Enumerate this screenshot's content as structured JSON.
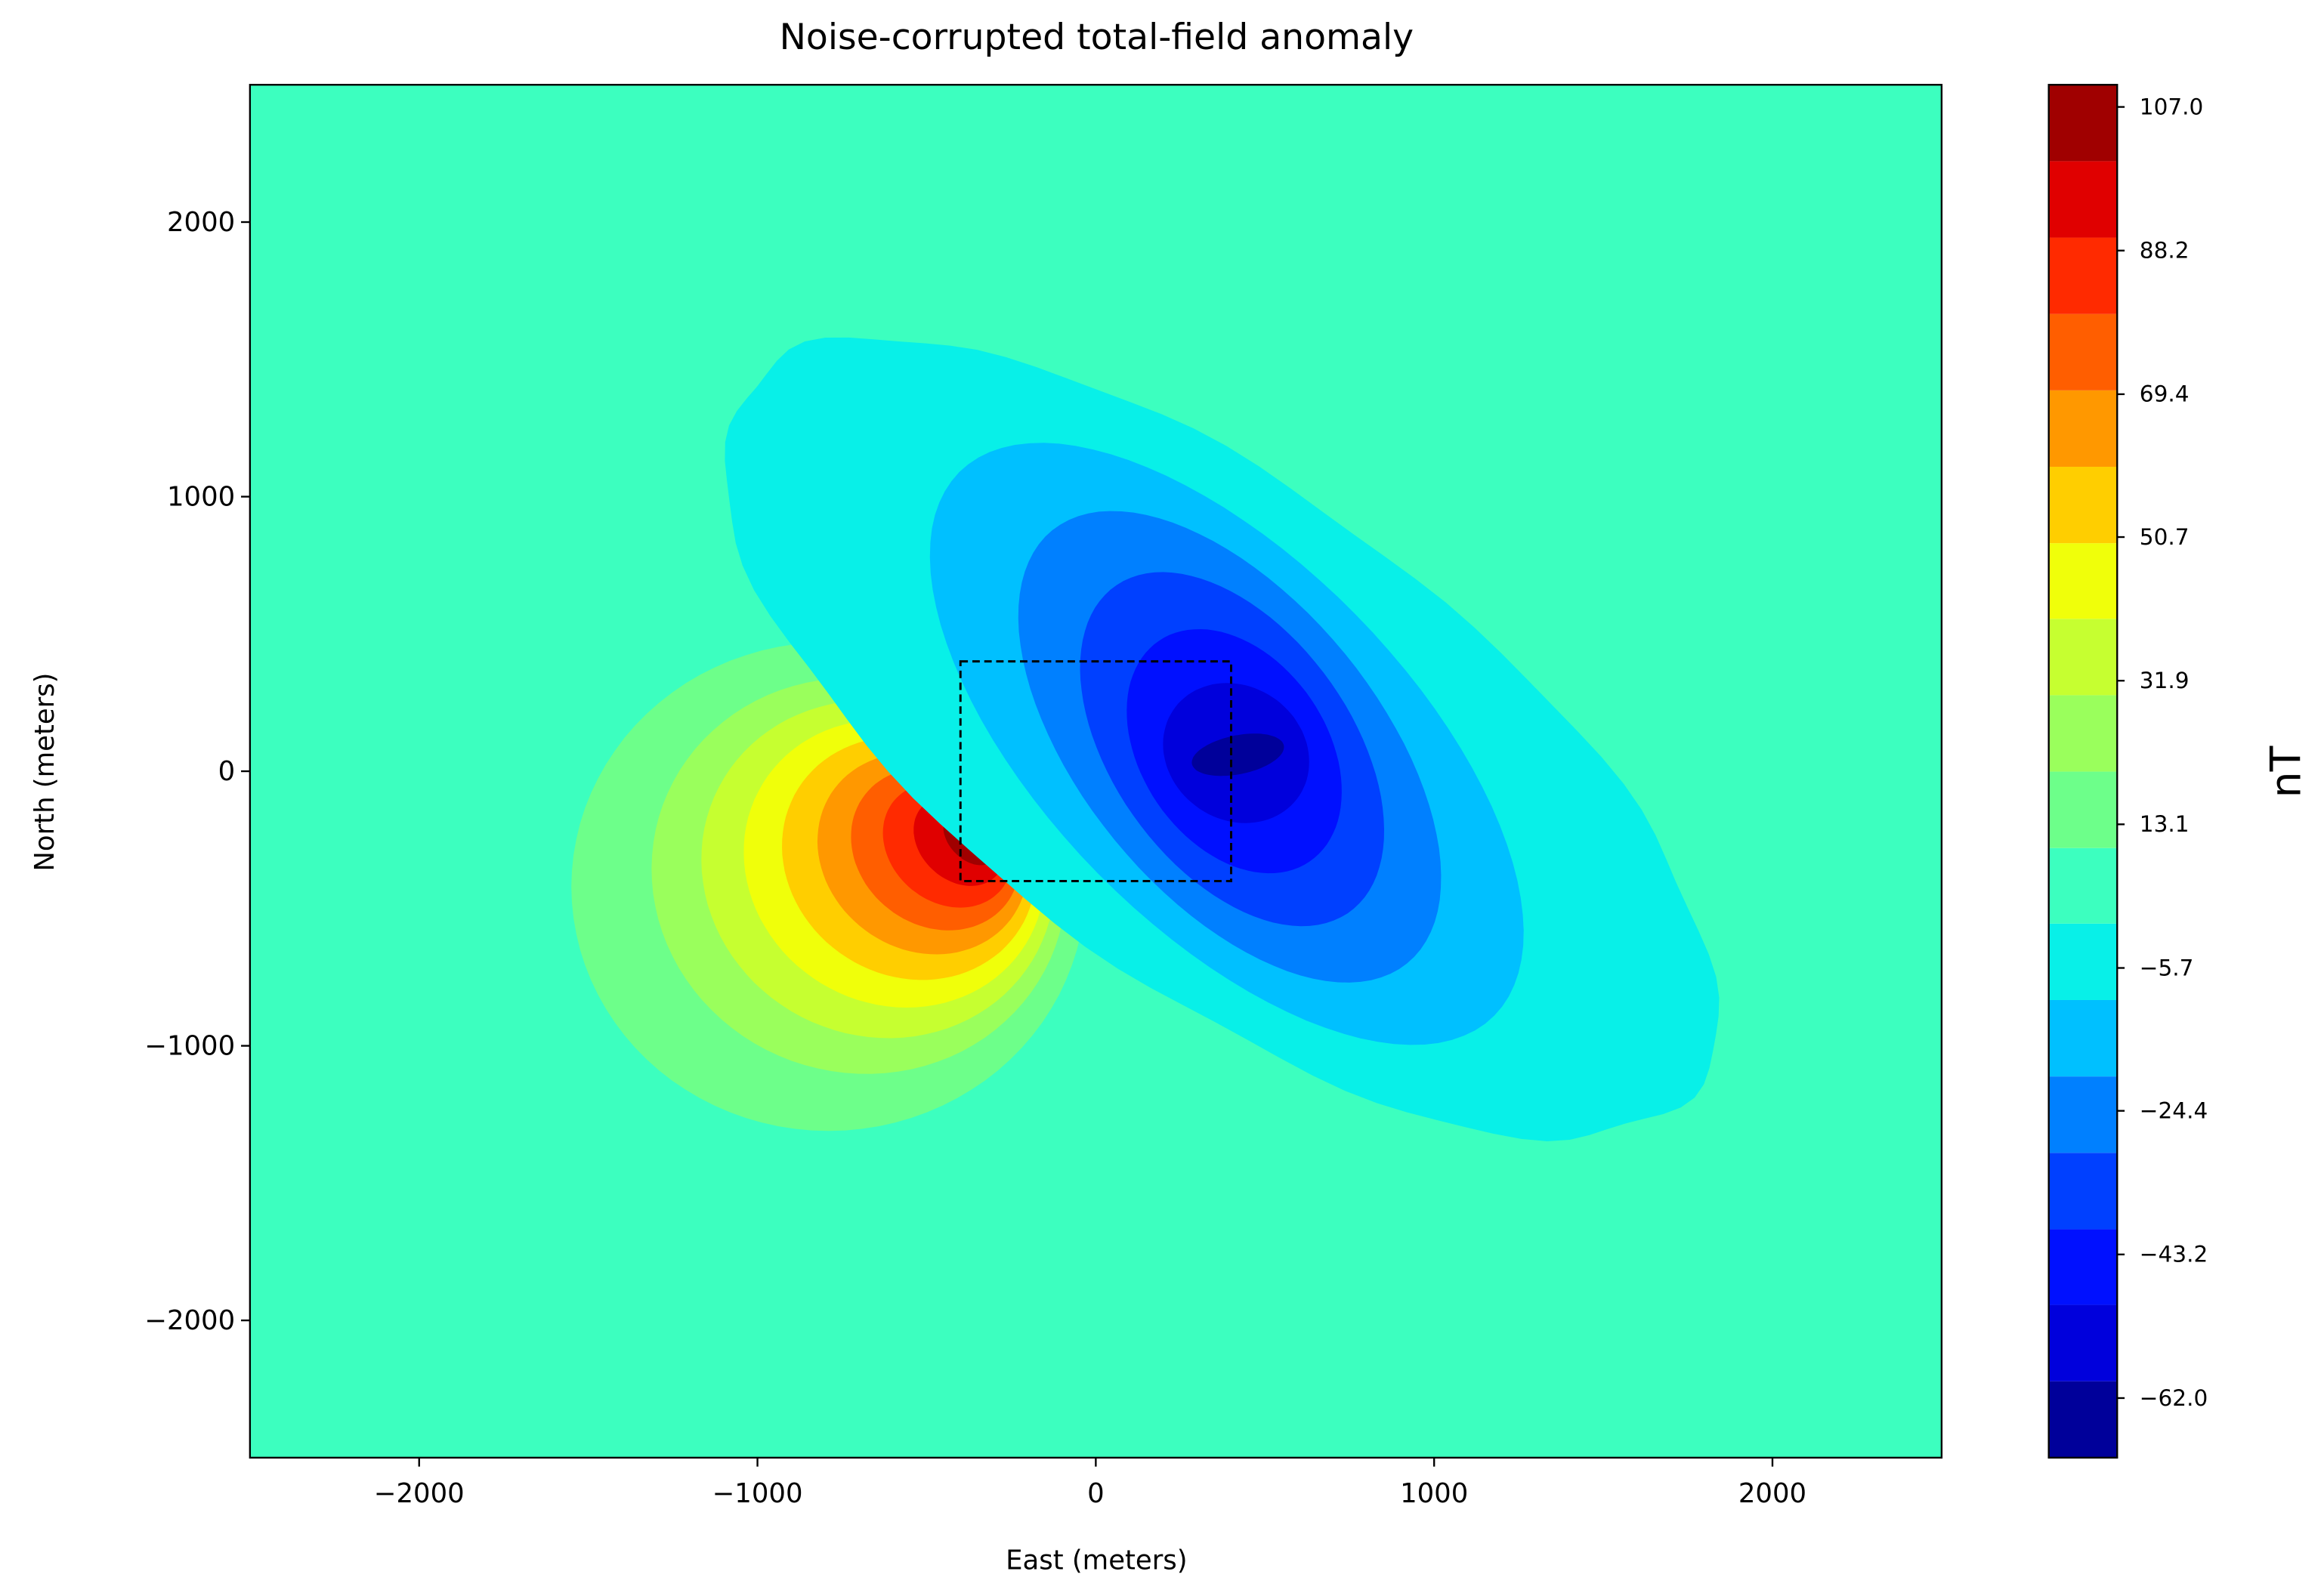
{
  "chart_data": {
    "type": "contourf",
    "title": "Noise-corrupted total-field anomaly",
    "x_label": "East (meters)",
    "y_label": "North (meters)",
    "colorbar_label": "nT",
    "xlim": [
      -2500,
      2500
    ],
    "ylim": [
      -2500,
      2500
    ],
    "xticks": [
      -2000,
      -1000,
      0,
      1000,
      2000
    ],
    "yticks": [
      -2000,
      -1000,
      0,
      1000,
      2000
    ],
    "levels": [
      -69.8,
      -59.8,
      -49.8,
      -39.9,
      -29.9,
      -19.9,
      -9.9,
      0.1,
      10.0,
      20.0,
      30.0,
      40.0,
      49.9,
      59.9,
      69.9,
      79.9,
      89.9,
      99.9,
      109.9
    ],
    "colors": [
      "#00009a",
      "#0000dc",
      "#0010ff",
      "#0040ff",
      "#0080ff",
      "#00c0ff",
      "#08f0e8",
      "#3cffbf",
      "#6dff8a",
      "#9aff5c",
      "#c6ff30",
      "#f0ff0a",
      "#ffce00",
      "#ff9800",
      "#ff5e00",
      "#ff2a00",
      "#e00000",
      "#a00000"
    ],
    "colorbar_ticks": [
      {
        "value": -62.0,
        "label": "−62.0"
      },
      {
        "value": -43.2,
        "label": "−43.2"
      },
      {
        "value": -24.4,
        "label": "−24.4"
      },
      {
        "value": -5.7,
        "label": "−5.7"
      },
      {
        "value": 13.1,
        "label": "13.1"
      },
      {
        "value": 31.9,
        "label": "31.9"
      },
      {
        "value": 50.7,
        "label": "50.7"
      },
      {
        "value": 69.4,
        "label": "69.4"
      },
      {
        "value": 88.2,
        "label": "88.2"
      },
      {
        "value": 107.0,
        "label": "107.0"
      }
    ],
    "box": {
      "x": [
        -400,
        400
      ],
      "y": [
        -400,
        400
      ]
    }
  }
}
